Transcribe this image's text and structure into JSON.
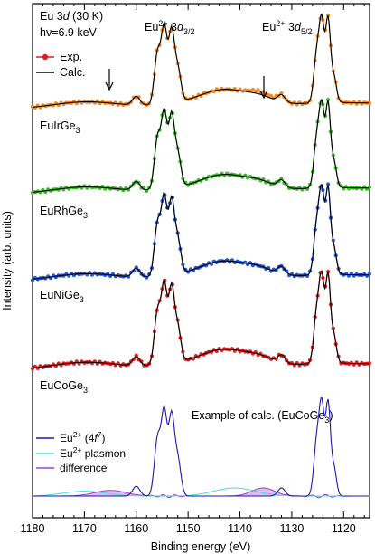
{
  "header": {
    "line1_a": "Eu 3",
    "line1_b": "d",
    "line1_c": " (30 K)",
    "line2": "hν=6.9 keV"
  },
  "peak_labels": {
    "d32_prefix": "Eu",
    "d32_sup": "2+",
    "d32_main": " 3",
    "d32_d": "d",
    "d32_sub": "3/2",
    "d52_prefix": "Eu",
    "d52_sup": "2+",
    "d52_main": " 3",
    "d52_d": "d",
    "d52_sub": "5/2"
  },
  "legend_top": {
    "exp": "Exp.",
    "calc": "Calc."
  },
  "samples": [
    {
      "base": "EuIrGe",
      "sub": "3",
      "color": "#f0892a"
    },
    {
      "base": "EuRhGe",
      "sub": "3",
      "color": "#3db82b"
    },
    {
      "base": "EuNiGe",
      "sub": "3",
      "color": "#2355d8"
    },
    {
      "base": "EuCoGe",
      "sub": "3",
      "color": "#e02020"
    }
  ],
  "example": {
    "prefix": "Example of calc. (EuCoGe",
    "sub": "3",
    "suffix": ")"
  },
  "legend_bottom": {
    "eu_4f_prefix": "Eu",
    "eu_4f_sup": "2+",
    "eu_4f_main": " (4",
    "eu_4f_f": "f",
    "eu_4f_sup2": "7",
    "eu_4f_end": ")",
    "plasmon_prefix": "Eu",
    "plasmon_sup": "2+",
    "plasmon_main": " plasmon",
    "difference": "difference"
  },
  "axes": {
    "xlabel": "Binding energy (eV)",
    "ylabel": "Intensity (arb. units)",
    "xticks": [
      "1180",
      "1170",
      "1160",
      "1150",
      "1140",
      "1130",
      "1120"
    ]
  },
  "colors": {
    "calc": "#000000",
    "eu4f": "#1a1aa8",
    "plasmon": "#44dddd",
    "difference": "#a040d8",
    "difference_fill": "#d9a8ee"
  },
  "chart_data": {
    "type": "line",
    "xlabel": "Binding energy (eV)",
    "ylabel": "Intensity (arb. units)",
    "xlim": [
      1180,
      1115
    ],
    "x_reversed": true,
    "xticks": [
      1180,
      1170,
      1160,
      1150,
      1140,
      1130,
      1120
    ],
    "arrows_at_eV": [
      1164.5,
      1136.0
    ],
    "spectra_offset_note": "curves vertically offset",
    "series": [
      {
        "name": "EuIrGe3",
        "kind": "Exp. + Calc."
      },
      {
        "name": "EuRhGe3",
        "kind": "Exp. + Calc."
      },
      {
        "name": "EuNiGe3",
        "kind": "Exp. + Calc."
      },
      {
        "name": "EuCoGe3",
        "kind": "Exp. + Calc."
      },
      {
        "name": "Eu2+ (4f7)",
        "kind": "calc"
      },
      {
        "name": "Eu2+ plasmon",
        "kind": "calc"
      },
      {
        "name": "difference",
        "kind": "calc"
      }
    ]
  }
}
